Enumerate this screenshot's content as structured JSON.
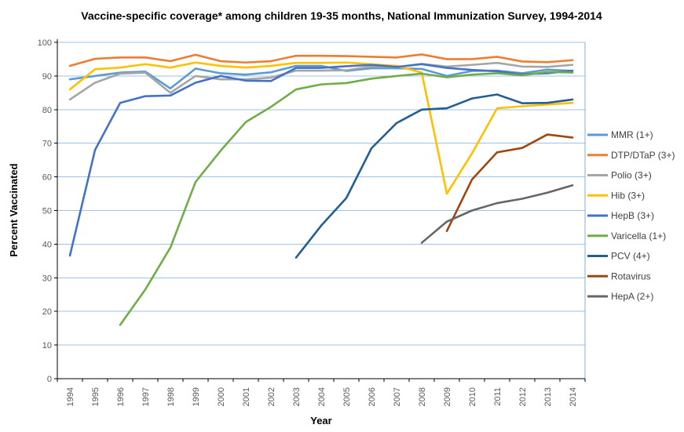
{
  "title": "Vaccine-specific coverage* among children 19-35 months, National Immunization Survey, 1994-2014",
  "colors": {
    "gridline": "#9DC3E6",
    "plot_border": "#7FAEDC",
    "axis": "#000000",
    "tick_label": "#595959",
    "legend_text": "#404040",
    "background": "#FFFFFF"
  },
  "chart_data": {
    "type": "line",
    "title": "Vaccine-specific coverage* among children 19-35 months, National Immunization Survey, 1994-2014",
    "xlabel": "Year",
    "ylabel": "Percent Vaccinated",
    "ylim": [
      0,
      100
    ],
    "ytick_step": 10,
    "grid": "horizontal-light-blue",
    "legend_position": "right",
    "years": [
      1994,
      1995,
      1996,
      1997,
      1998,
      1999,
      2000,
      2001,
      2002,
      2003,
      2004,
      2005,
      2006,
      2007,
      2008,
      2009,
      2010,
      2011,
      2012,
      2013,
      2014
    ],
    "series": [
      {
        "name": "MMR (1+)",
        "color": "#5B9BD5",
        "values": [
          89,
          90,
          91,
          91.3,
          86.3,
          92.2,
          90.8,
          90.4,
          91.1,
          93,
          93,
          91.5,
          92.3,
          92.3,
          92.1,
          90,
          91.5,
          91.6,
          90.8,
          91.9,
          91.5
        ]
      },
      {
        "name": "DTP/DTaP (3+)",
        "color": "#ED7D31",
        "values": [
          93,
          95.1,
          95.5,
          95.5,
          94.4,
          96.3,
          94.4,
          94,
          94.4,
          96,
          96,
          95.9,
          95.7,
          95.5,
          96.4,
          95,
          95,
          95.7,
          94.3,
          94.1,
          94.7
        ]
      },
      {
        "name": "Polio (3+)",
        "color": "#A5A5A5",
        "values": [
          83,
          88,
          90.7,
          91,
          85,
          90,
          89,
          89,
          89.5,
          91.6,
          91.6,
          91.7,
          92.8,
          92.6,
          93.6,
          92.8,
          93.3,
          93.9,
          92.8,
          92.7,
          93.3
        ]
      },
      {
        "name": "Hib (3+)",
        "color": "#FFC000",
        "values": [
          86,
          92,
          92.5,
          93.5,
          92.5,
          94,
          93,
          92.5,
          93,
          93.9,
          93.9,
          94,
          93.5,
          93,
          91,
          55,
          67,
          80.4,
          81,
          81.5,
          82
        ]
      },
      {
        "name": "HepB (3+)",
        "color": "#4472C4",
        "values": [
          36.6,
          68,
          82,
          84,
          84.2,
          88,
          90,
          88.6,
          88.5,
          92.4,
          92.4,
          92.9,
          93.3,
          92.7,
          93.5,
          92.4,
          91.8,
          91.4,
          90.5,
          90.8,
          91.6
        ]
      },
      {
        "name": "Varicella (1+)",
        "color": "#70AD47",
        "values": [
          null,
          null,
          16,
          26.5,
          39,
          58.5,
          67.8,
          76.3,
          80.8,
          86,
          87.5,
          87.9,
          89.2,
          90,
          90.7,
          89.6,
          90.4,
          90.8,
          90.2,
          91.2,
          91
        ]
      },
      {
        "name": "PCV (4+)",
        "color": "#255E91",
        "values": [
          null,
          null,
          null,
          null,
          null,
          null,
          null,
          null,
          null,
          36,
          45.5,
          53.7,
          68.5,
          76,
          80,
          80.4,
          83.3,
          84.5,
          81.9,
          82,
          83
        ]
      },
      {
        "name": "Rotavirus",
        "color": "#A0470E",
        "values": [
          null,
          null,
          null,
          null,
          null,
          null,
          null,
          null,
          null,
          null,
          null,
          null,
          null,
          null,
          null,
          43.9,
          59.2,
          67.3,
          68.6,
          72.6,
          71.7
        ]
      },
      {
        "name": "HepA (2+)",
        "color": "#666666",
        "values": [
          null,
          null,
          null,
          null,
          null,
          null,
          null,
          null,
          null,
          null,
          null,
          null,
          null,
          null,
          40.4,
          46.7,
          50,
          52.2,
          53.5,
          55.3,
          57.5
        ]
      }
    ]
  }
}
